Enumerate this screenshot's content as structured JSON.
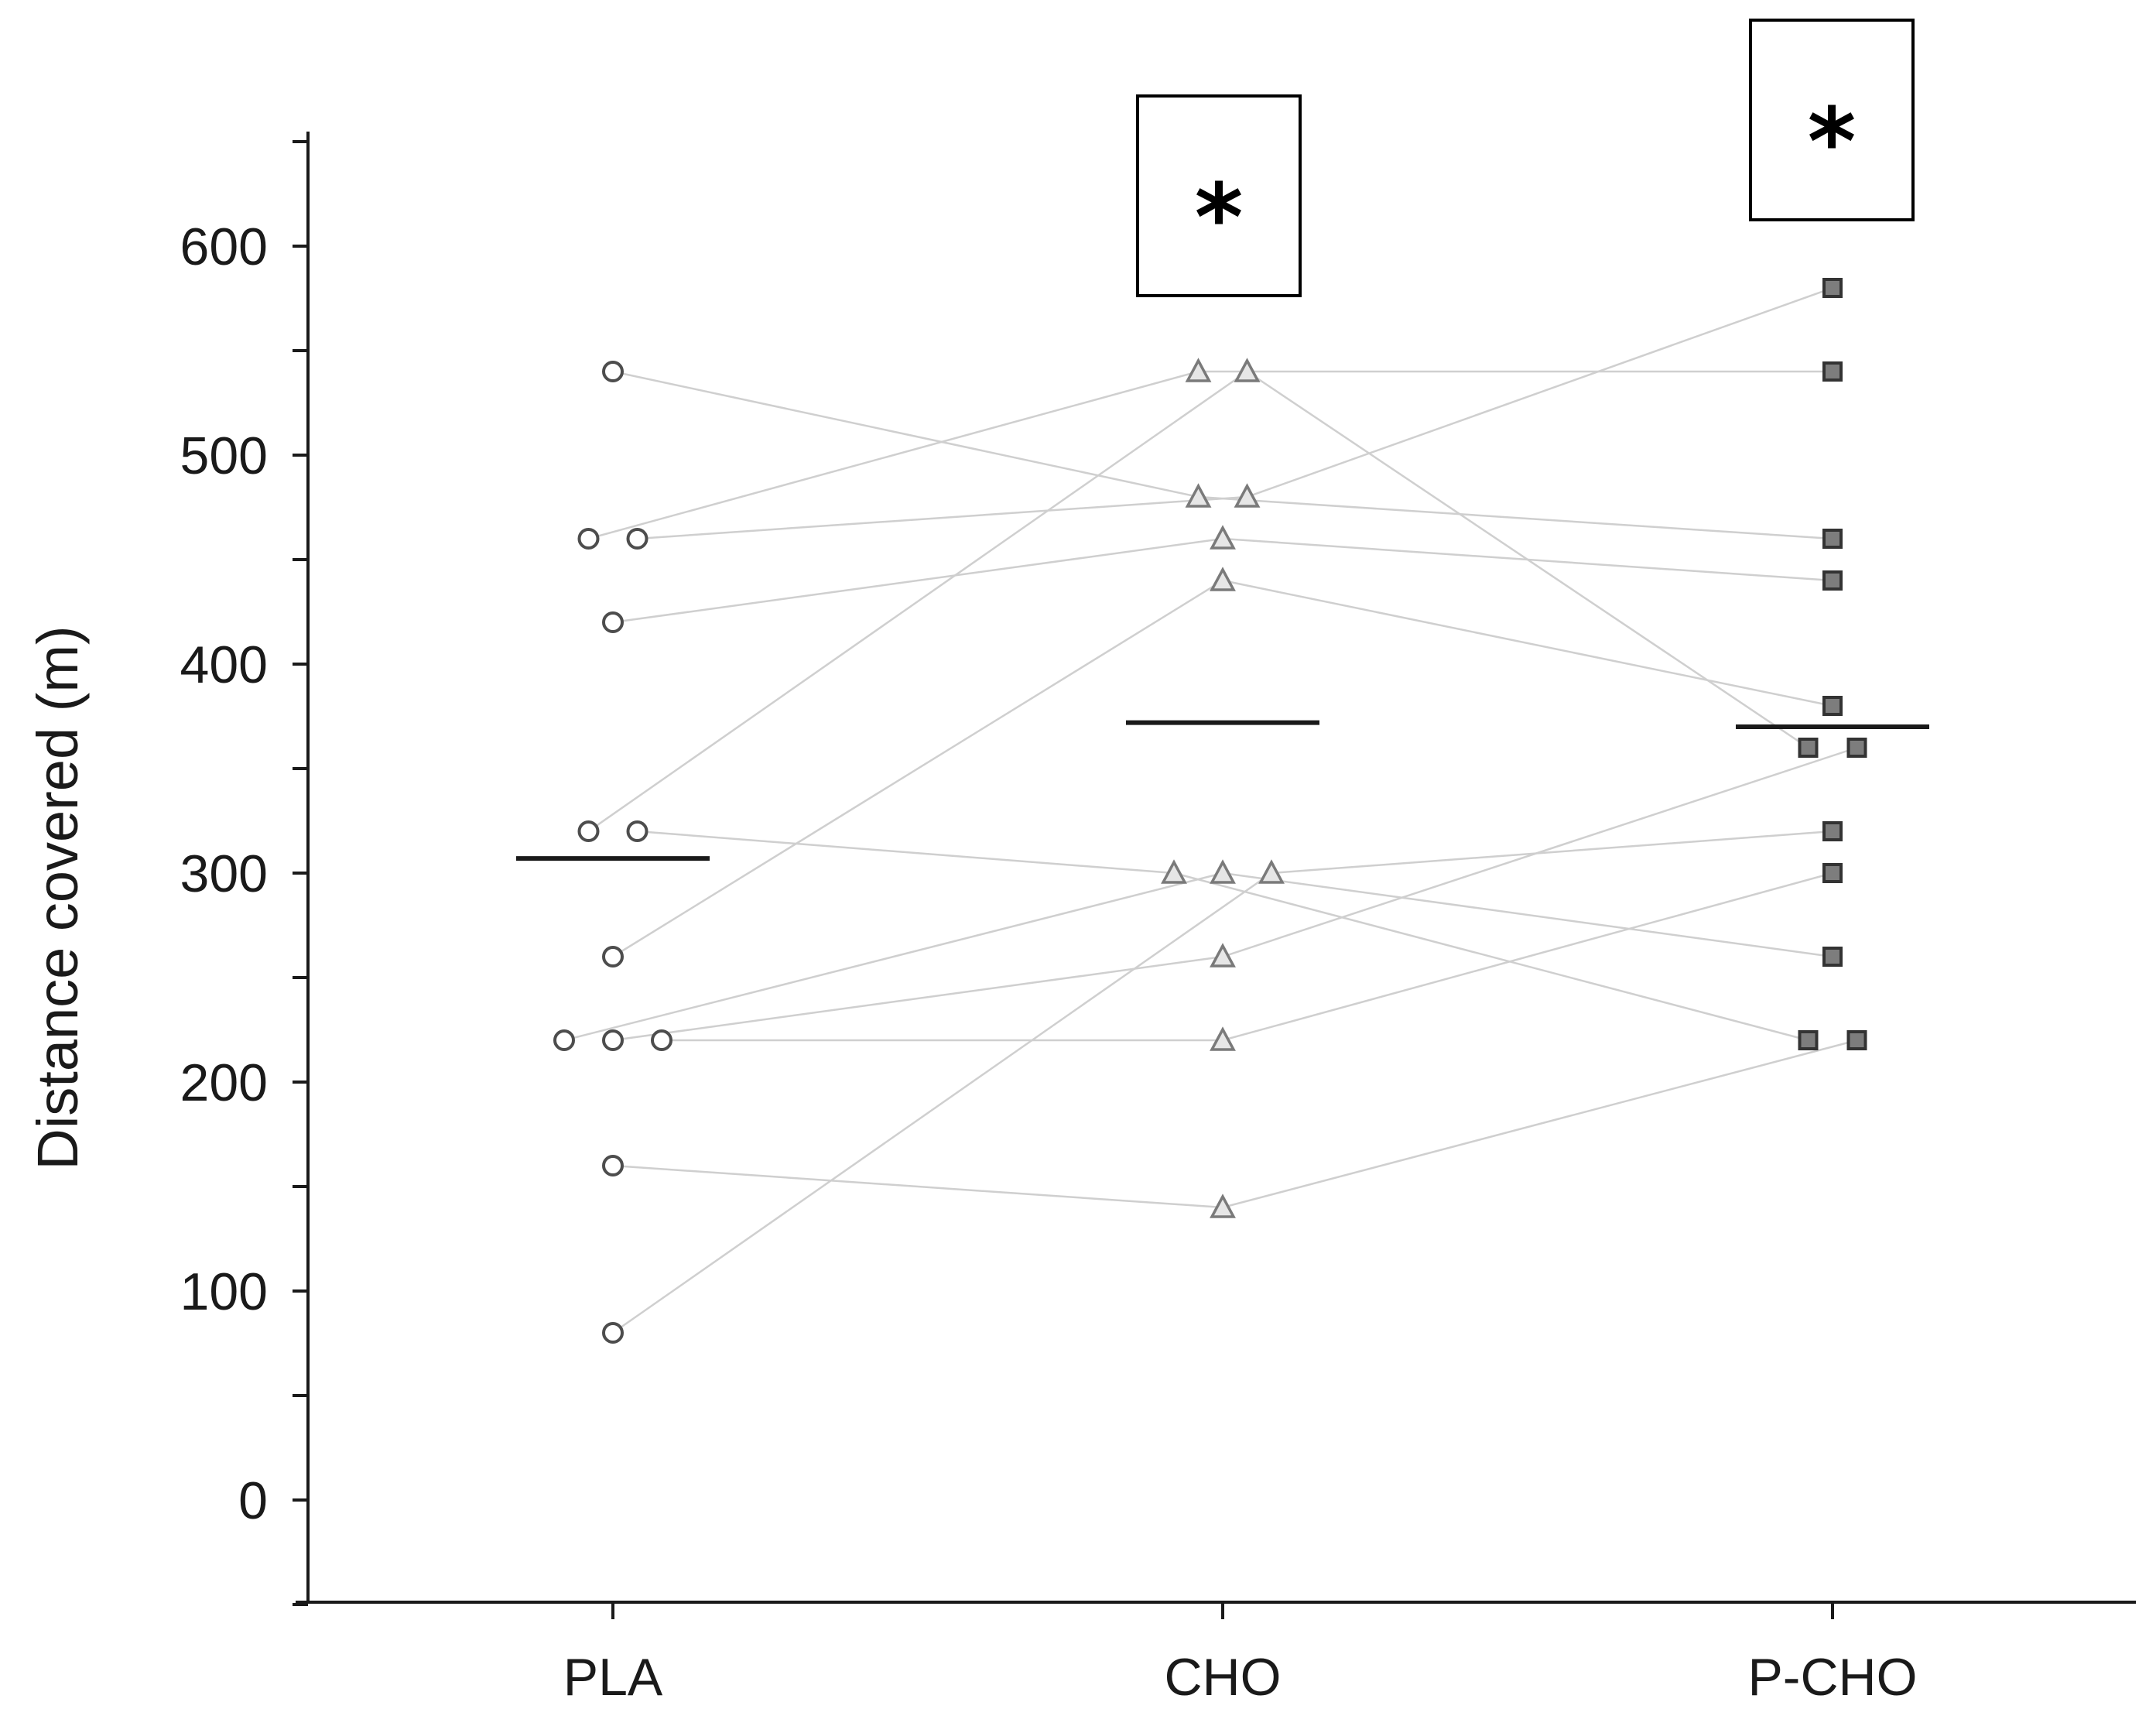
{
  "chart_data": {
    "type": "scatter",
    "title": "",
    "xlabel": "",
    "ylabel": "Distance covered (m)",
    "ylim": [
      -50,
      650
    ],
    "yticks": [
      0,
      100,
      200,
      300,
      400,
      500,
      600
    ],
    "grid": false,
    "categories": [
      "PLA",
      "CHO",
      "P-CHO"
    ],
    "series": [
      {
        "name": "PLA",
        "marker": "circle",
        "values": [
          540,
          460,
          460,
          420,
          320,
          320,
          260,
          220,
          220,
          220,
          160,
          80
        ]
      },
      {
        "name": "CHO",
        "marker": "triangle",
        "values": [
          540,
          540,
          480,
          480,
          460,
          440,
          300,
          300,
          300,
          260,
          220,
          140
        ]
      },
      {
        "name": "P-CHO",
        "marker": "square",
        "values": [
          580,
          540,
          460,
          440,
          380,
          360,
          360,
          320,
          300,
          260,
          220,
          220
        ]
      }
    ],
    "paired_lines": [
      [
        540,
        480,
        460
      ],
      [
        460,
        540,
        540
      ],
      [
        460,
        480,
        580
      ],
      [
        420,
        460,
        440
      ],
      [
        320,
        540,
        360
      ],
      [
        320,
        300,
        220
      ],
      [
        260,
        440,
        380
      ],
      [
        220,
        300,
        260
      ],
      [
        220,
        260,
        360
      ],
      [
        220,
        220,
        300
      ],
      [
        160,
        140,
        220
      ],
      [
        80,
        300,
        320
      ]
    ],
    "means": [
      307,
      372,
      370
    ],
    "annotations": [
      {
        "category": "CHO",
        "text": "*"
      },
      {
        "category": "P-CHO",
        "text": "*"
      }
    ]
  }
}
